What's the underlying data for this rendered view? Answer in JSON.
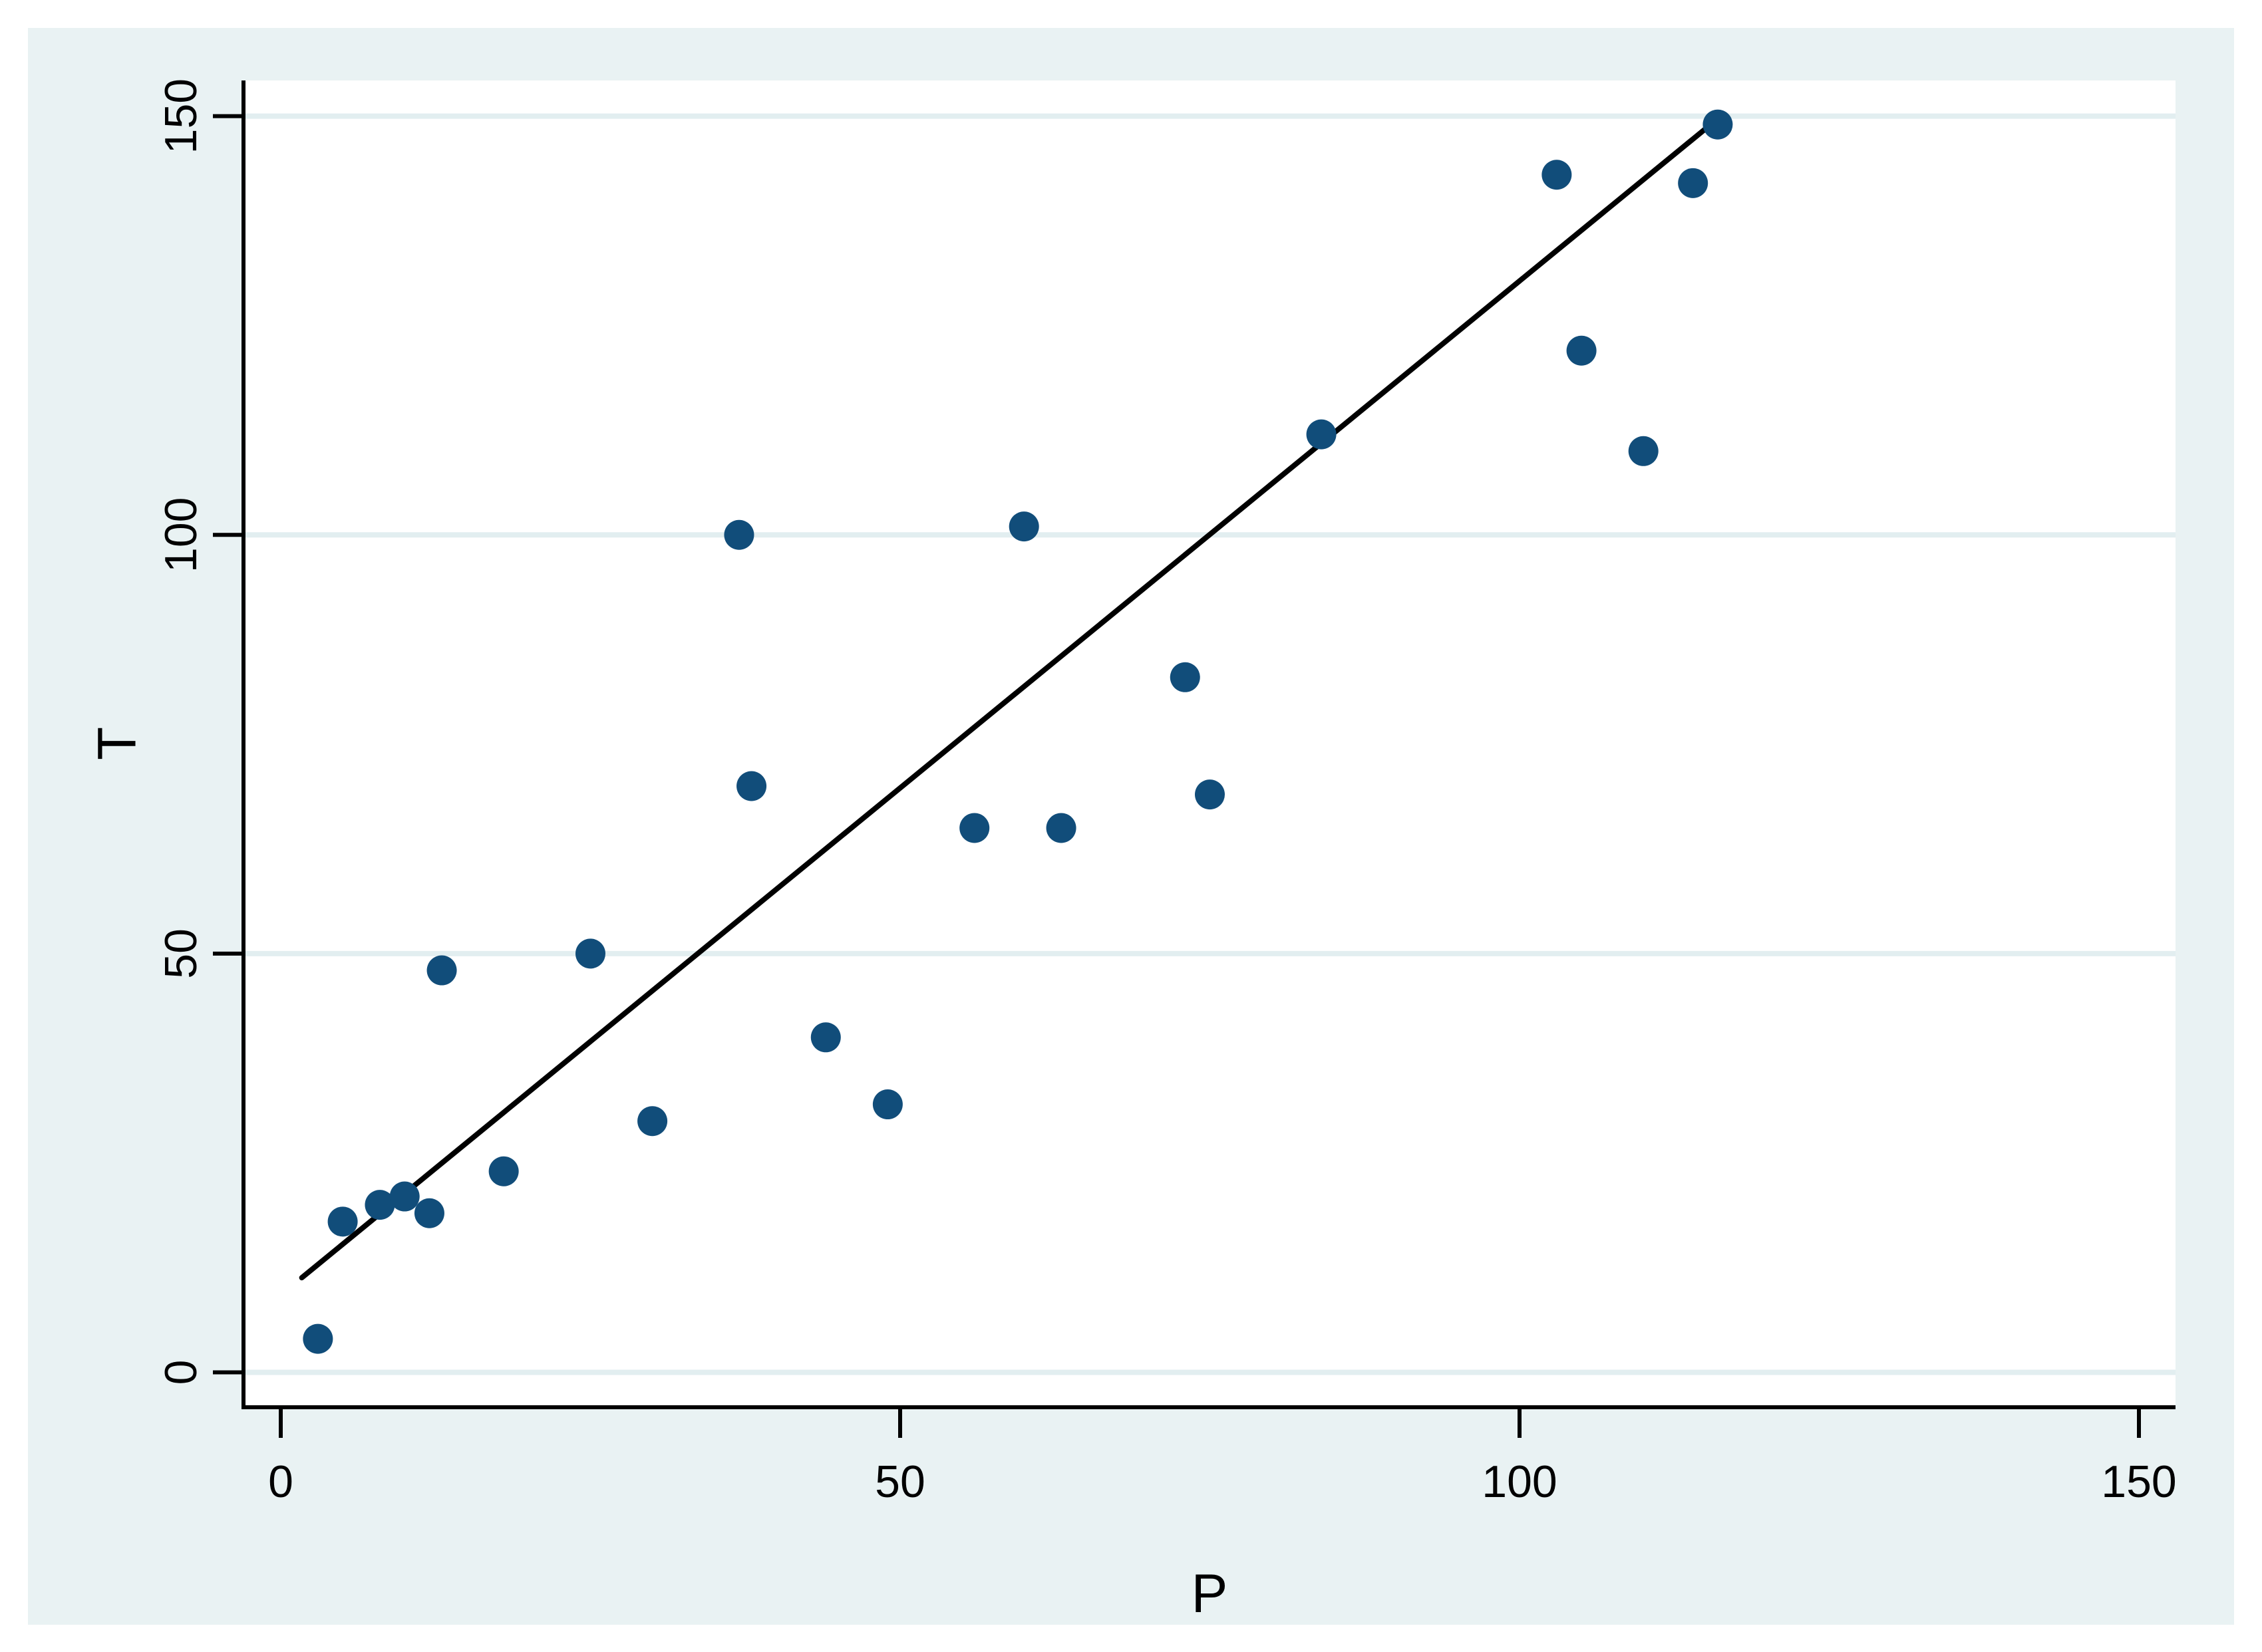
{
  "figure": {
    "page_background": "#FFFFFF",
    "canvas_color": "#E9F2F3",
    "plot_background": "#FFFFFF",
    "gridline_color": "#E2EEF0",
    "axis_color": "#000000",
    "tick_label_color": "#000000"
  },
  "chart_data": {
    "type": "scatter",
    "title": "",
    "xlabel": "P",
    "ylabel": "T",
    "x_ticks": [
      0,
      50,
      100,
      150
    ],
    "y_ticks": [
      0,
      50,
      100,
      150
    ],
    "x_tick_labels": [
      "0",
      "50",
      "100",
      "150"
    ],
    "y_tick_labels": [
      "0",
      "50",
      "100",
      "150"
    ],
    "xlim": [
      -3,
      153
    ],
    "ylim": [
      -4.2,
      154.3
    ],
    "grid": "horizontal-only",
    "legend_position": "none",
    "marker_color": "#114D7A",
    "marker_shape": "circle",
    "fit_line_color": "#000000",
    "points": [
      [
        3,
        4
      ],
      [
        5,
        18
      ],
      [
        8,
        20
      ],
      [
        10,
        21
      ],
      [
        12,
        19
      ],
      [
        13,
        48
      ],
      [
        18,
        24
      ],
      [
        25,
        50
      ],
      [
        30,
        30
      ],
      [
        37,
        100
      ],
      [
        38,
        70
      ],
      [
        44,
        40
      ],
      [
        49,
        32
      ],
      [
        56,
        65
      ],
      [
        60,
        101
      ],
      [
        63,
        65
      ],
      [
        73,
        83
      ],
      [
        75,
        69
      ],
      [
        84,
        112
      ],
      [
        103,
        143
      ],
      [
        105,
        122
      ],
      [
        110,
        110
      ],
      [
        114,
        142
      ],
      [
        116,
        149
      ]
    ],
    "fit_line": {
      "p1": [
        1.7,
        11.3
      ],
      "p2": [
        115.6,
        149.2
      ]
    }
  }
}
